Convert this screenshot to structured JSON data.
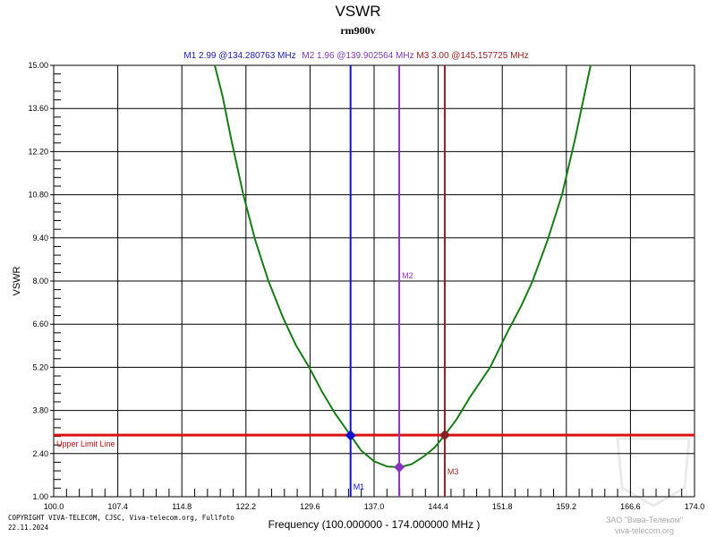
{
  "chart_data": {
    "type": "line",
    "title": "VSWR",
    "subtitle": "rm900v",
    "xlabel": "Frequency (100.000000 - 174.000000 MHz )",
    "ylabel": "VSWR",
    "xlim": [
      100.0,
      174.0
    ],
    "ylim": [
      1.0,
      15.0
    ],
    "x_ticks": [
      "100.0",
      "107.4",
      "114.8",
      "122.2",
      "129.6",
      "137.0",
      "144.4",
      "151.8",
      "159.2",
      "166.6",
      "174.0"
    ],
    "y_ticks": [
      "1.00",
      "2.40",
      "3.80",
      "5.20",
      "6.60",
      "8.00",
      "9.40",
      "10.80",
      "12.20",
      "13.60",
      "15.00"
    ],
    "grid": true,
    "series": [
      {
        "color": "#1a7a1a",
        "x": [
          118.6,
          119.5,
          120.5,
          121.9,
          123.3,
          124.8,
          126.5,
          128.0,
          129.5,
          131.0,
          132.5,
          134.28,
          135.5,
          137.0,
          138.5,
          139.9,
          141.3,
          142.7,
          144.0,
          145.16,
          146.5,
          148.0,
          150.4,
          152.5,
          154.0,
          155.3,
          157.0,
          158.7,
          160.2,
          162.0
        ],
        "y": [
          15.0,
          14.0,
          12.6,
          10.8,
          9.3,
          8.0,
          6.8,
          5.9,
          5.2,
          4.4,
          3.7,
          2.99,
          2.5,
          2.15,
          1.98,
          1.96,
          2.05,
          2.3,
          2.6,
          3.0,
          3.5,
          4.2,
          5.2,
          6.4,
          7.2,
          8.0,
          9.3,
          10.8,
          12.6,
          15.0
        ]
      }
    ],
    "limit_line": {
      "label": "Upper Limit Line",
      "value": 3.0,
      "color": "#dd1111"
    },
    "markers": [
      {
        "name": "M1",
        "x": 134.280763,
        "y": 2.99,
        "color": "#1111cc",
        "readout": "M1   2.99 @134.280763 MHz"
      },
      {
        "name": "M2",
        "x": 139.902564,
        "y": 1.96,
        "color": "#8833bb",
        "readout": "M2   1.96 @139.902564 MHz"
      },
      {
        "name": "M3",
        "x": 145.157725,
        "y": 3.0,
        "color": "#882222",
        "readout": "M3   3.00 @145.157725 MHz"
      }
    ]
  },
  "footer": {
    "copyright": "COPYRIGHT VIVA-TELECOM, CJSC, Viva-telecom.org, Fullfoto",
    "date": "22.11.2024"
  },
  "watermark": {
    "line1": "ЗАО \"Вива-Телеком\"",
    "line2": "viva-telecom.org"
  }
}
